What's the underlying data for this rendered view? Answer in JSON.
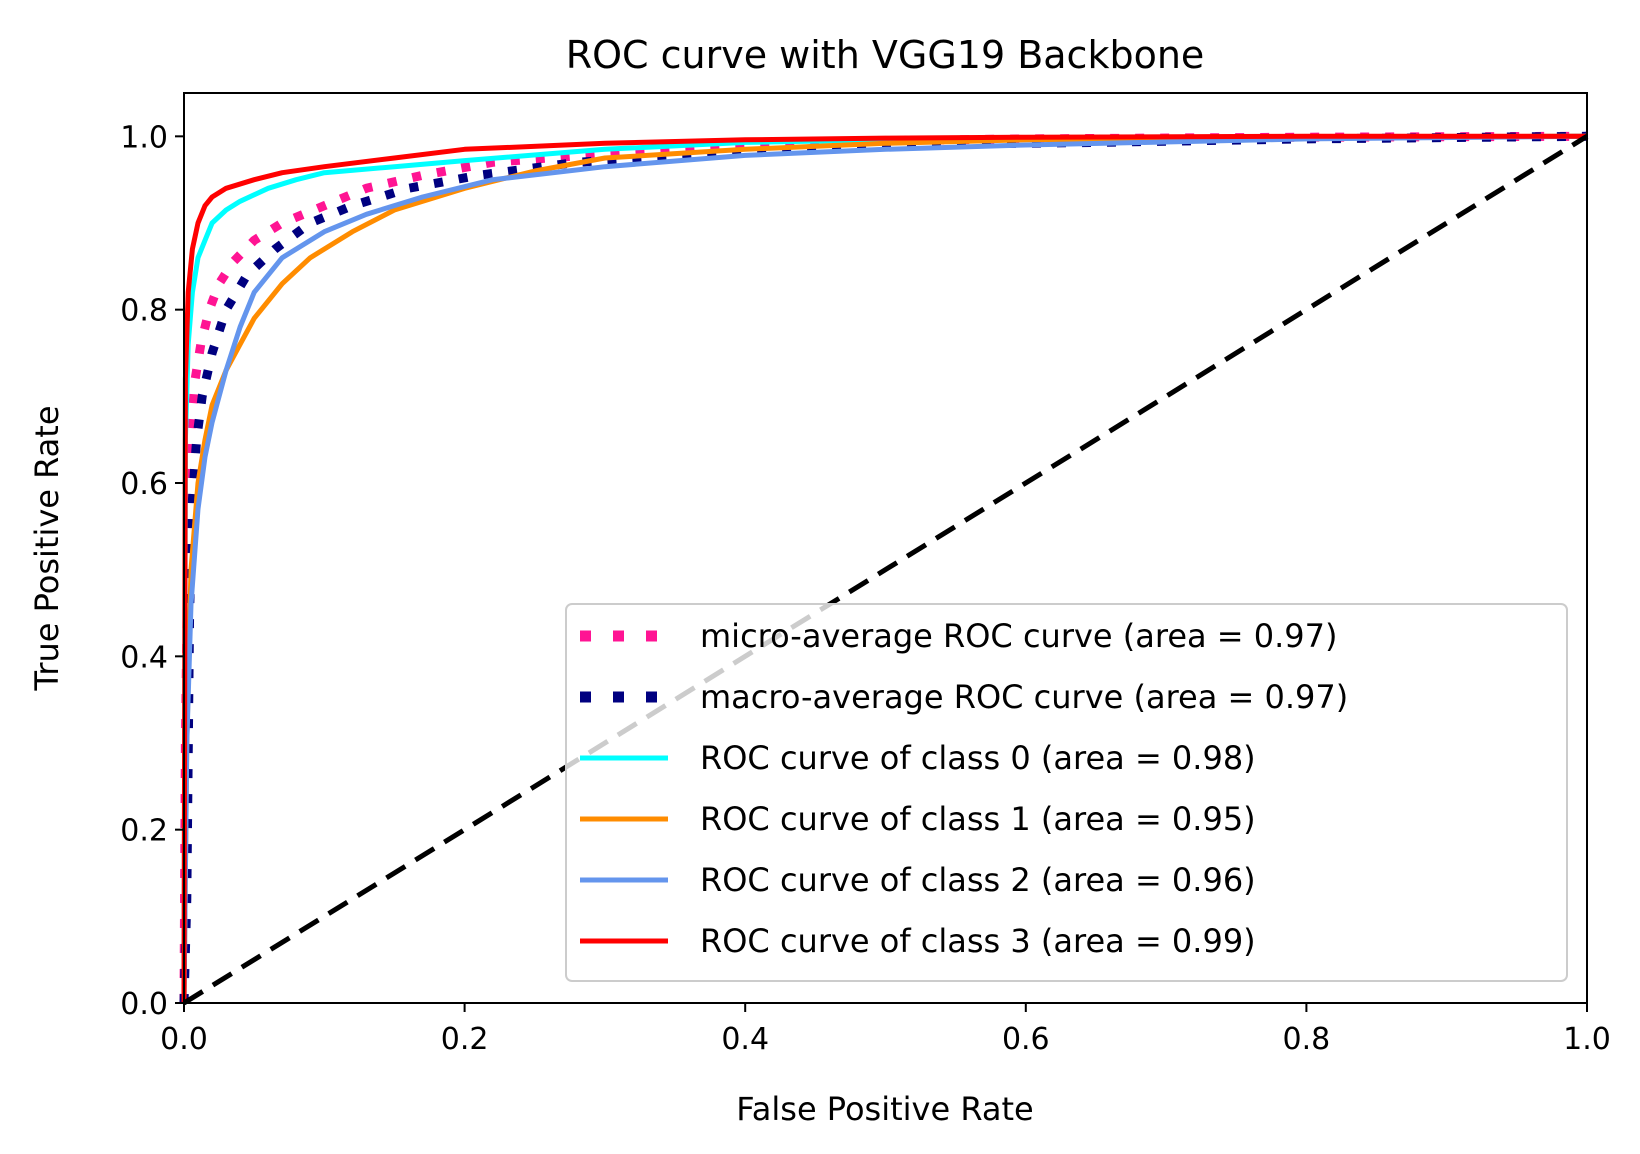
{
  "chart_data": {
    "type": "line",
    "title": "ROC curve with VGG19 Backbone",
    "xlabel": "False Positive Rate",
    "ylabel": "True Positive Rate",
    "xlim": [
      0.0,
      1.0
    ],
    "ylim": [
      0.0,
      1.05
    ],
    "xticks": [
      0.0,
      0.2,
      0.4,
      0.6,
      0.8,
      1.0
    ],
    "xtick_labels": [
      "0.0",
      "0.2",
      "0.4",
      "0.6",
      "0.8",
      "1.0"
    ],
    "yticks": [
      0.0,
      0.2,
      0.4,
      0.6,
      0.8,
      1.0
    ],
    "ytick_labels": [
      "0.0",
      "0.2",
      "0.4",
      "0.6",
      "0.8",
      "1.0"
    ],
    "grid": false,
    "legend_position": "lower-right",
    "series": [
      {
        "name": "micro-average ROC curve (area = 0.97)",
        "color": "#ff1493",
        "style": "dotted",
        "x": [
          0.0,
          0.001,
          0.003,
          0.005,
          0.008,
          0.012,
          0.018,
          0.025,
          0.035,
          0.05,
          0.07,
          0.1,
          0.13,
          0.17,
          0.22,
          0.3,
          0.4,
          0.5,
          0.6,
          0.8,
          1.0
        ],
        "y": [
          0.0,
          0.3,
          0.55,
          0.66,
          0.72,
          0.76,
          0.8,
          0.83,
          0.855,
          0.88,
          0.9,
          0.92,
          0.94,
          0.955,
          0.97,
          0.98,
          0.99,
          0.995,
          0.997,
          0.999,
          1.0
        ]
      },
      {
        "name": "macro-average ROC curve (area = 0.97)",
        "color": "#000080",
        "style": "dotted",
        "x": [
          0.0,
          0.002,
          0.004,
          0.006,
          0.009,
          0.013,
          0.02,
          0.03,
          0.045,
          0.065,
          0.09,
          0.12,
          0.16,
          0.21,
          0.28,
          0.38,
          0.5,
          0.65,
          0.8,
          1.0
        ],
        "y": [
          0.0,
          0.12,
          0.45,
          0.58,
          0.65,
          0.7,
          0.75,
          0.8,
          0.84,
          0.87,
          0.9,
          0.92,
          0.94,
          0.955,
          0.97,
          0.98,
          0.99,
          0.993,
          0.997,
          1.0
        ]
      },
      {
        "name": "ROC curve of class 0 (area = 0.98)",
        "color": "#00ffff",
        "style": "solid",
        "x": [
          0.0,
          0.001,
          0.003,
          0.006,
          0.01,
          0.015,
          0.02,
          0.03,
          0.04,
          0.06,
          0.08,
          0.1,
          0.15,
          0.2,
          0.3,
          0.4,
          0.5,
          0.6,
          0.8,
          1.0
        ],
        "y": [
          0.0,
          0.65,
          0.76,
          0.82,
          0.86,
          0.88,
          0.9,
          0.915,
          0.925,
          0.94,
          0.95,
          0.958,
          0.965,
          0.972,
          0.985,
          0.993,
          0.996,
          0.998,
          0.999,
          1.0
        ]
      },
      {
        "name": "ROC curve of class 1 (area = 0.95)",
        "color": "#ff8c00",
        "style": "solid",
        "x": [
          0.0,
          0.002,
          0.005,
          0.01,
          0.015,
          0.02,
          0.03,
          0.04,
          0.05,
          0.07,
          0.09,
          0.12,
          0.15,
          0.2,
          0.25,
          0.3,
          0.4,
          0.5,
          0.6,
          0.8,
          1.0
        ],
        "y": [
          0.0,
          0.3,
          0.5,
          0.6,
          0.65,
          0.69,
          0.73,
          0.76,
          0.79,
          0.83,
          0.86,
          0.89,
          0.915,
          0.94,
          0.96,
          0.975,
          0.985,
          0.992,
          0.996,
          0.999,
          1.0
        ]
      },
      {
        "name": "ROC curve of class 2 (area = 0.96)",
        "color": "#6495ed",
        "style": "solid",
        "x": [
          0.0,
          0.002,
          0.005,
          0.01,
          0.015,
          0.02,
          0.03,
          0.04,
          0.05,
          0.07,
          0.1,
          0.13,
          0.17,
          0.22,
          0.3,
          0.4,
          0.5,
          0.6,
          0.8,
          1.0
        ],
        "y": [
          0.0,
          0.3,
          0.46,
          0.57,
          0.63,
          0.67,
          0.73,
          0.78,
          0.82,
          0.86,
          0.89,
          0.91,
          0.93,
          0.95,
          0.965,
          0.978,
          0.985,
          0.99,
          0.997,
          1.0
        ]
      },
      {
        "name": "ROC curve of class 3 (area = 0.99)",
        "color": "#ff0000",
        "style": "solid",
        "x": [
          0.0,
          0.001,
          0.003,
          0.006,
          0.01,
          0.015,
          0.02,
          0.03,
          0.05,
          0.07,
          0.1,
          0.15,
          0.2,
          0.3,
          0.4,
          0.5,
          0.6,
          0.8,
          1.0
        ],
        "y": [
          0.0,
          0.72,
          0.82,
          0.87,
          0.9,
          0.92,
          0.93,
          0.94,
          0.95,
          0.958,
          0.965,
          0.975,
          0.985,
          0.992,
          0.996,
          0.998,
          0.999,
          1.0,
          1.0
        ]
      },
      {
        "name": "chance",
        "color": "#000000",
        "style": "dashed",
        "in_legend": false,
        "x": [
          0.0,
          1.0
        ],
        "y": [
          0.0,
          1.0
        ]
      }
    ]
  }
}
